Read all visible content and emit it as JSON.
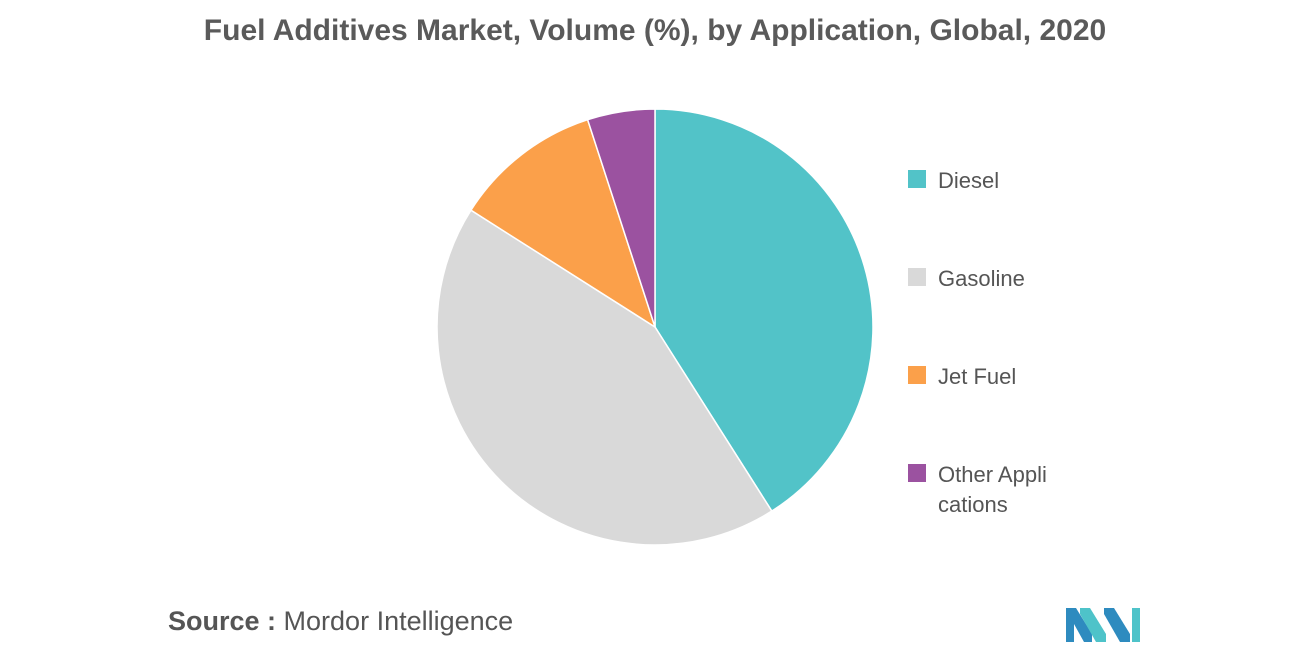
{
  "source": {
    "label": "Source :",
    "name": "Mordor Intelligence"
  },
  "logo": {
    "icon": "mordor-intelligence-logo-icon",
    "colors": [
      "#2e8bbf",
      "#4ec3c9"
    ]
  },
  "chart_data": {
    "type": "pie",
    "title": "Fuel Additives Market, Volume (%), by Application, Global, 2020",
    "start_angle": "12 o'clock",
    "direction": "clockwise",
    "legend_position": "right",
    "slices": [
      {
        "label": "Diesel",
        "value": 41,
        "color": "#52c3c8"
      },
      {
        "label": "Gasoline",
        "value": 43,
        "color": "#d9d9d9"
      },
      {
        "label": "Jet Fuel",
        "value": 11,
        "color": "#fba04a"
      },
      {
        "label": "Other Applications",
        "value": 5,
        "color": "#9b52a0"
      }
    ]
  }
}
